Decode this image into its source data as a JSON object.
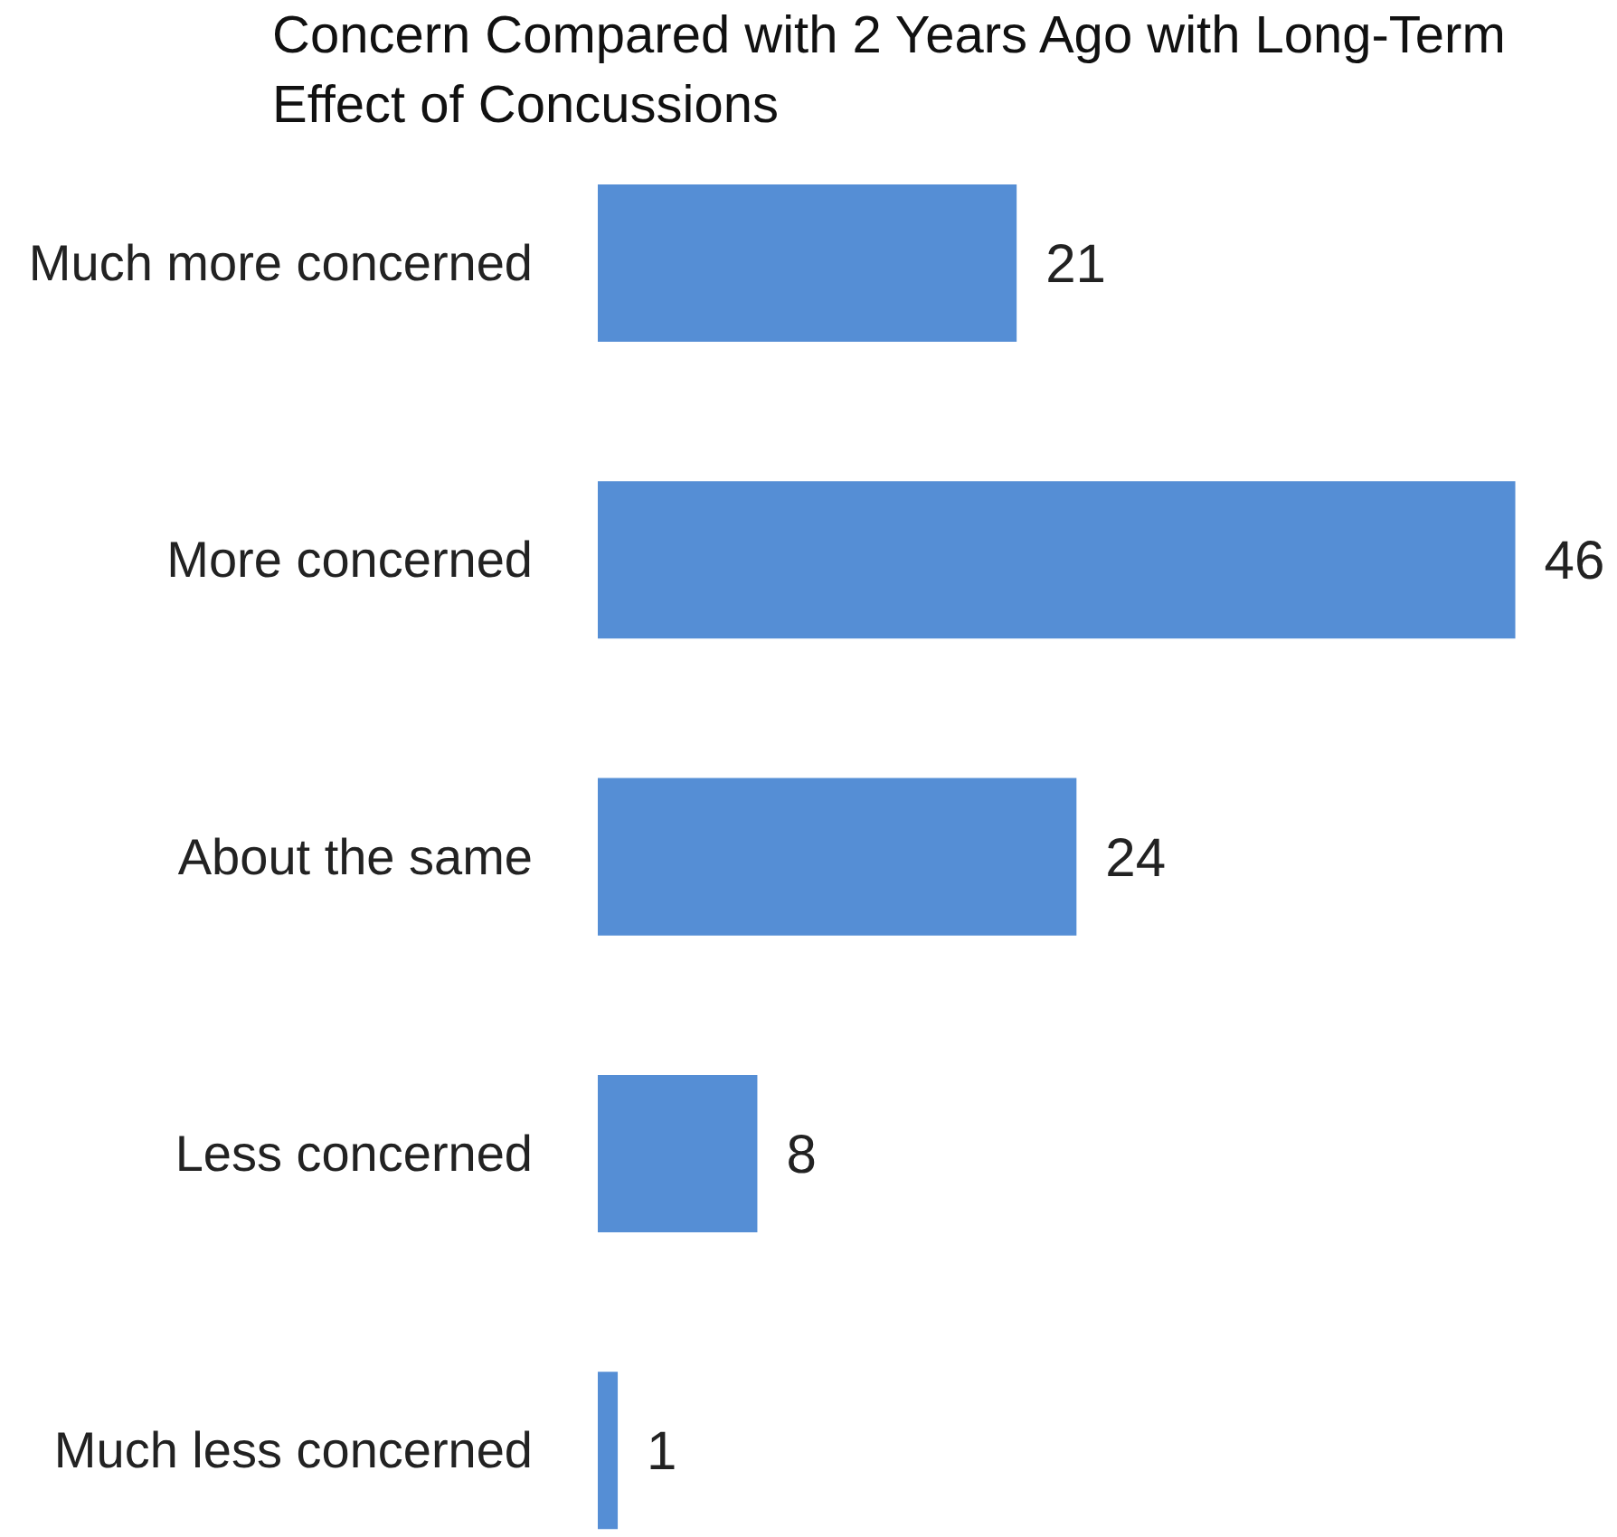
{
  "chart_data": {
    "type": "bar",
    "orientation": "horizontal",
    "title": "Concern Compared with 2 Years Ago with Long-Term Effect of Concussions",
    "categories": [
      "Much more concerned",
      "More concerned",
      "About the same",
      "Less concerned",
      "Much less concerned"
    ],
    "values": [
      21,
      46,
      24,
      8,
      1
    ],
    "color": "#558ed5",
    "data_labels": true,
    "grid": false
  }
}
